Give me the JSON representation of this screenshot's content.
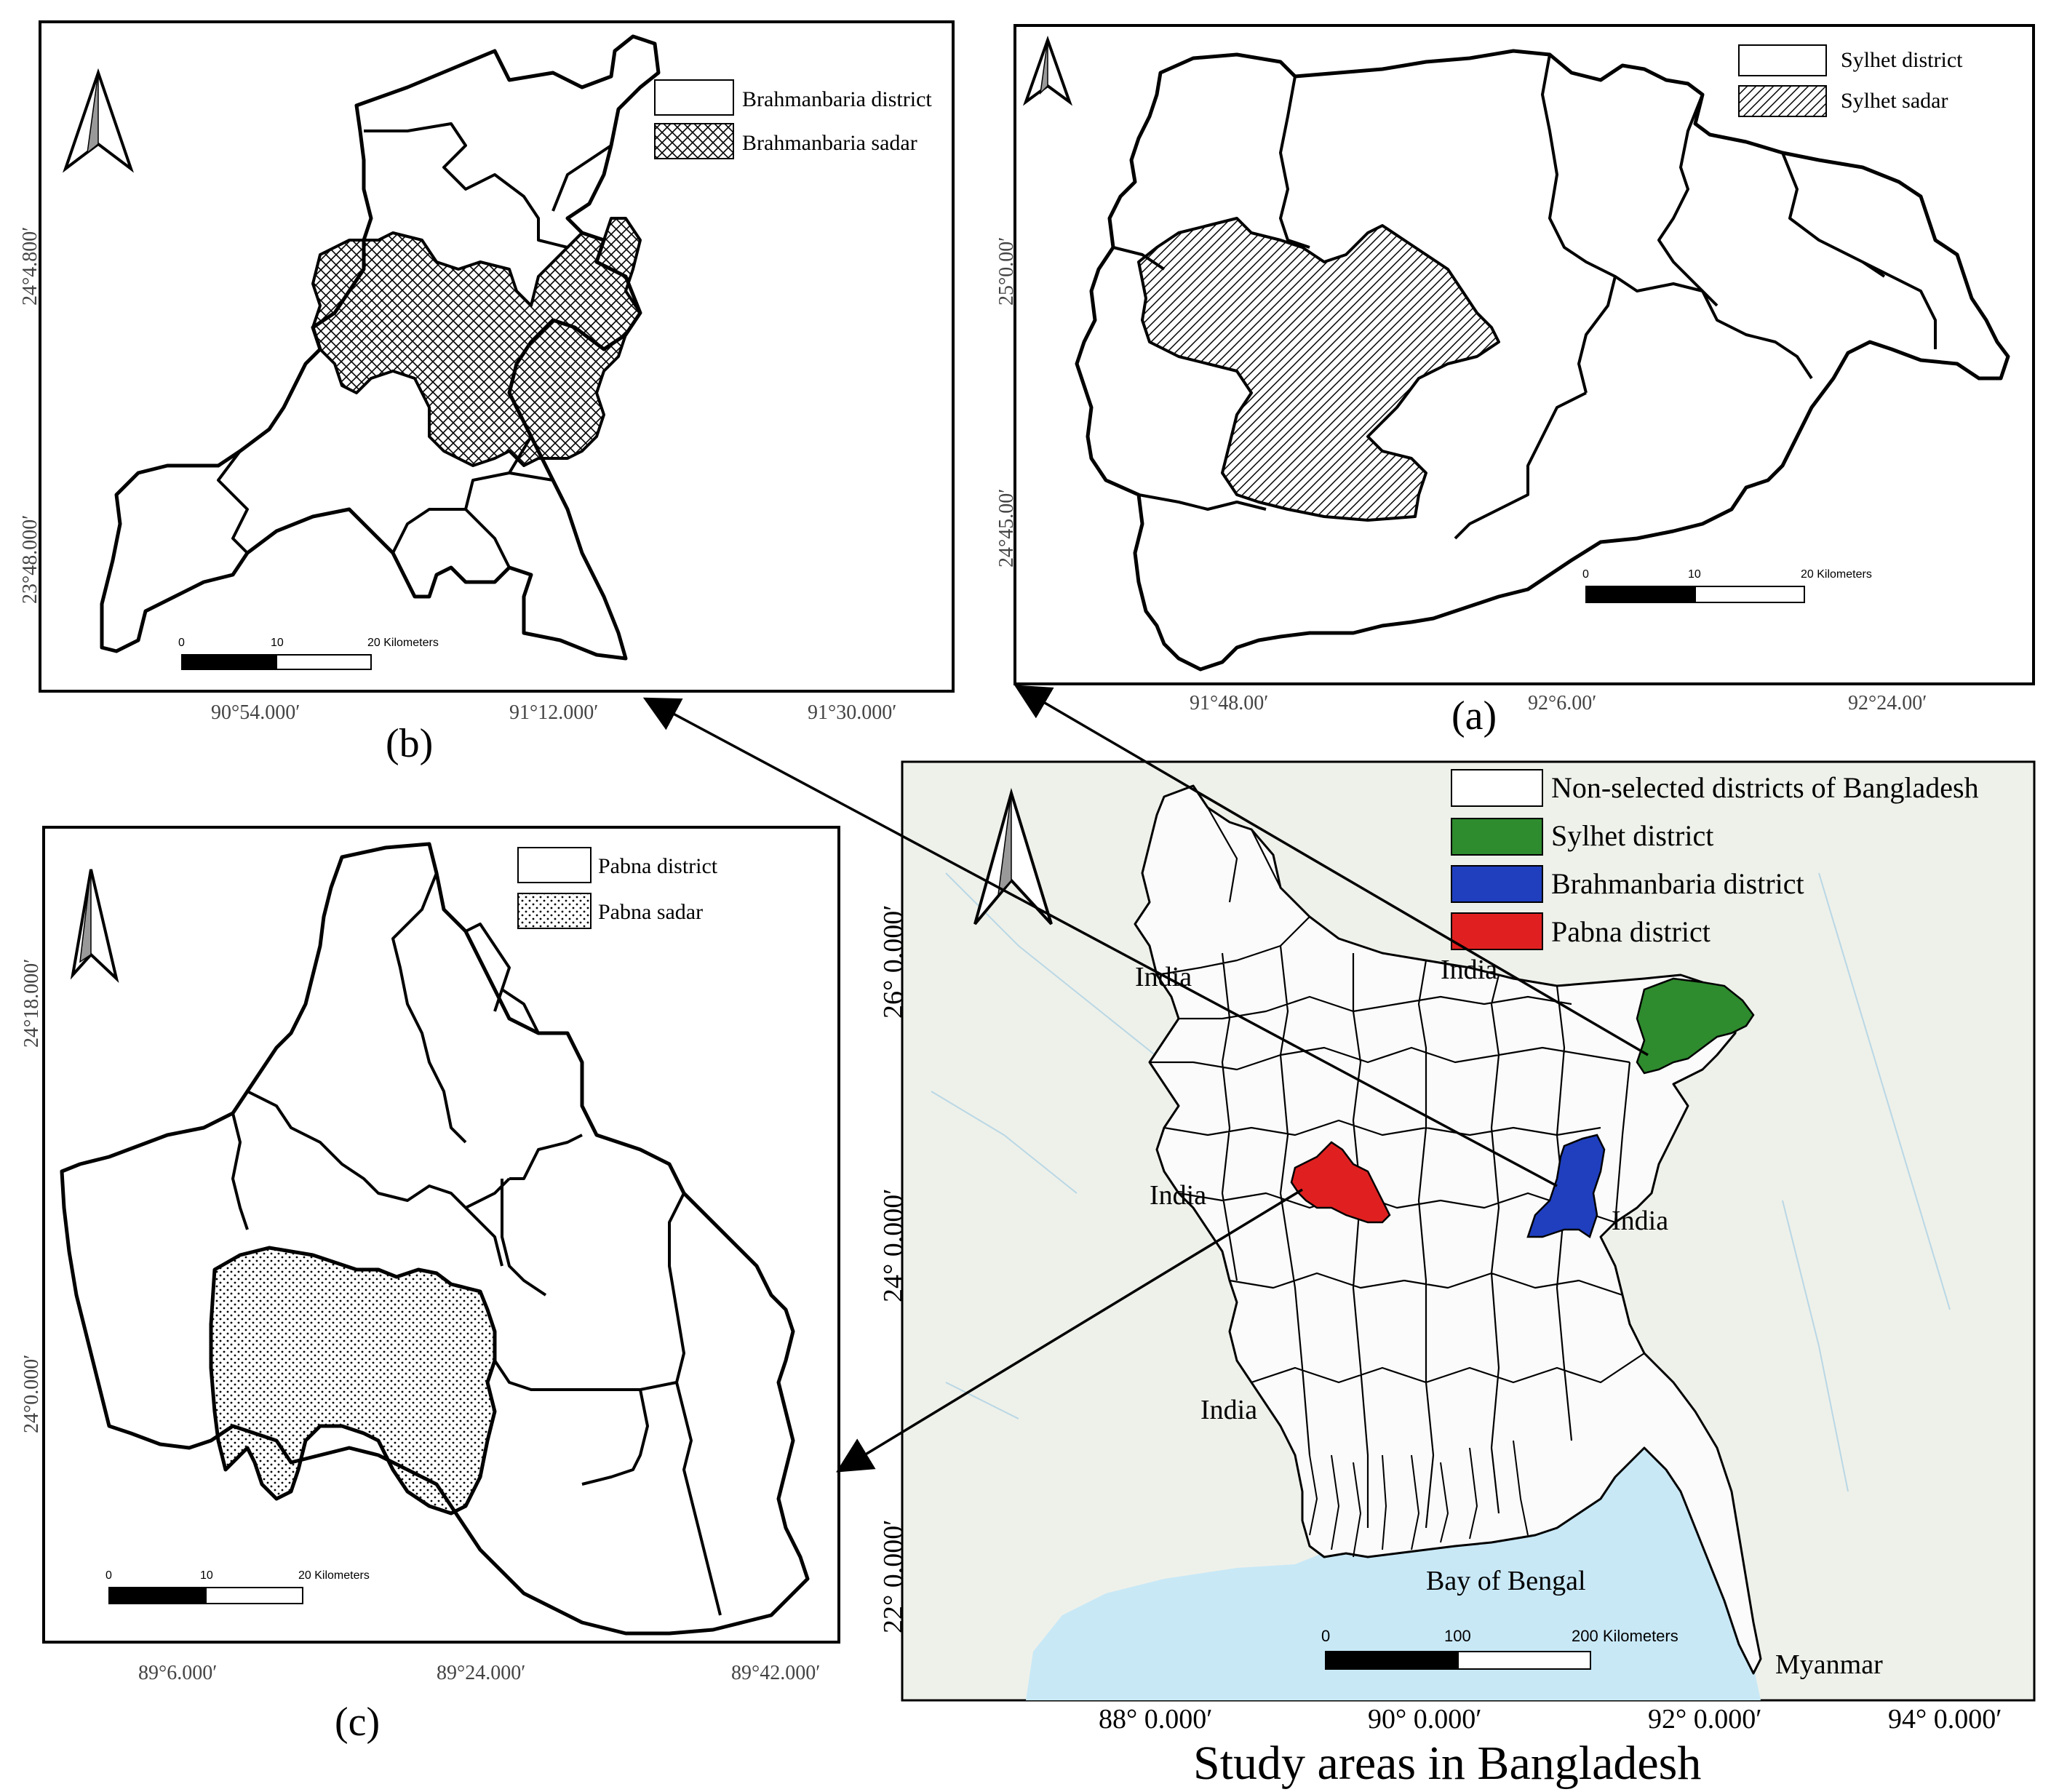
{
  "panels": {
    "b": {
      "label": "(b)",
      "legend": [
        "Brahmanbaria district",
        "Brahmanbaria sadar"
      ],
      "lat_ticks": [
        "24°4.800′",
        "23°48.000′"
      ],
      "lon_ticks": [
        "90°54.000′",
        "91°12.000′",
        "91°30.000′"
      ],
      "scale": [
        "0",
        "10",
        "20 Kilometers"
      ]
    },
    "a": {
      "label": "(a)",
      "legend": [
        "Sylhet district",
        "Sylhet sadar"
      ],
      "lat_ticks": [
        "25°0.00′",
        "24°45.00′"
      ],
      "lon_ticks": [
        "91°48.00′",
        "92°6.00′",
        "92°24.00′"
      ],
      "scale": [
        "0",
        "10",
        "20 Kilometers"
      ]
    },
    "c": {
      "label": "(c)",
      "legend": [
        "Pabna district",
        "Pabna sadar"
      ],
      "lat_ticks": [
        "24°18.000′",
        "24°0.000′"
      ],
      "lon_ticks": [
        "89°6.000′",
        "89°24.000′",
        "89°42.000′"
      ],
      "scale": [
        "0",
        "10",
        "20 Kilometers"
      ]
    },
    "main": {
      "title": "Study areas in Bangladesh",
      "legend": [
        {
          "label": "Non-selected districts of Bangladesh",
          "color": "#ffffff"
        },
        {
          "label": "Sylhet district",
          "color": "#2e8b2e"
        },
        {
          "label": "Brahmanbaria district",
          "color": "#1f3fbf"
        },
        {
          "label": "Pabna district",
          "color": "#e02020"
        }
      ],
      "lat_ticks": [
        "26° 0.000′",
        "24° 0.000′",
        "22° 0.000′"
      ],
      "lon_ticks": [
        "88° 0.000′",
        "90° 0.000′",
        "92° 0.000′",
        "94° 0.000′"
      ],
      "place_labels": [
        "India",
        "India",
        "India",
        "India",
        "India",
        "Bay of Bengal",
        "Myanmar"
      ],
      "scale": [
        "0",
        "100",
        "200 Kilometers"
      ]
    }
  },
  "colors": {
    "land": "#eef1ea",
    "sea": "#c8e8f6",
    "sylhet": "#2e8b2e",
    "brahmanbaria": "#1f3fbf",
    "pabna": "#e02020"
  }
}
